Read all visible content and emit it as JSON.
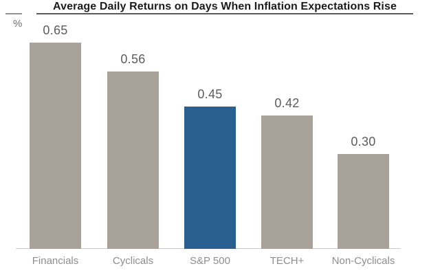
{
  "header": {
    "title": "Average Daily Returns on Days When Inflation Expectations Rise",
    "y_axis_unit": "%"
  },
  "chart_data": {
    "type": "bar",
    "title": "Average Daily Returns on Days When Inflation Expectations Rise",
    "categories": [
      "Financials",
      "Cyclicals",
      "S&P 500",
      "TECH+",
      "Non-Cyclicals"
    ],
    "values": [
      0.65,
      0.56,
      0.45,
      0.42,
      0.3
    ],
    "value_labels": [
      "0.65",
      "0.56",
      "0.45",
      "0.42",
      "0.30"
    ],
    "xlabel": "",
    "ylabel": "%",
    "ylim": [
      0,
      0.75
    ],
    "grid": false,
    "legend": "none",
    "highlighted_category": "S&P 500",
    "colors": {
      "bar_default": "#a9a29b",
      "bar_highlight": "#2a608f",
      "title_text": "#1b1b1b",
      "value_label_text": "#5c5c5c",
      "category_label_text": "#8d8d8d",
      "axis_line": "#cbcbcb",
      "title_underline": "#5a5a5a"
    }
  }
}
